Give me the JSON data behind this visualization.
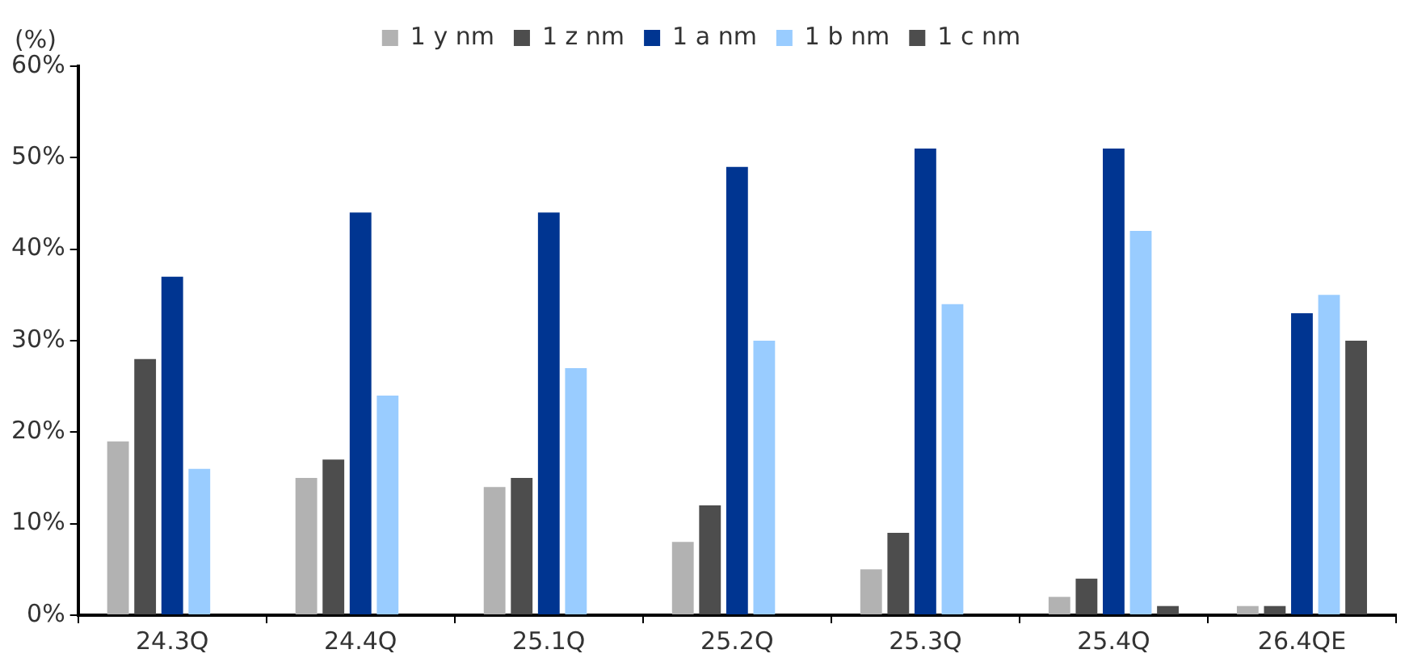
{
  "chart_data": {
    "type": "bar",
    "ylabel": "(%)",
    "categories": [
      "24.3Q",
      "24.4Q",
      "25.1Q",
      "25.2Q",
      "25.3Q",
      "25.4Q",
      "26.4QE"
    ],
    "series": [
      {
        "name": "1 y nm",
        "color": "#b2b2b2",
        "values": [
          19,
          15,
          14,
          8,
          5,
          2,
          1
        ]
      },
      {
        "name": "1 z nm",
        "color": "#4d4d4d",
        "values": [
          28,
          17,
          15,
          12,
          9,
          4,
          1
        ]
      },
      {
        "name": "1 a nm",
        "color": "#003591",
        "values": [
          37,
          44,
          44,
          49,
          51,
          51,
          33
        ]
      },
      {
        "name": "1 b nm",
        "color": "#99ccff",
        "values": [
          16,
          24,
          27,
          30,
          34,
          42,
          35
        ]
      },
      {
        "name": "1 c nm",
        "color": "#4d4d4d",
        "values": [
          null,
          null,
          null,
          null,
          null,
          1,
          30
        ]
      }
    ],
    "ylim": [
      0,
      60
    ],
    "yticks": [
      {
        "value": 0,
        "label": "0%"
      },
      {
        "value": 10,
        "label": "10%"
      },
      {
        "value": 20,
        "label": "20%"
      },
      {
        "value": 30,
        "label": "30%"
      },
      {
        "value": 40,
        "label": "40%"
      },
      {
        "value": 50,
        "label": "50%"
      },
      {
        "value": 60,
        "label": "60%"
      }
    ],
    "grid": false,
    "legend": "top"
  }
}
